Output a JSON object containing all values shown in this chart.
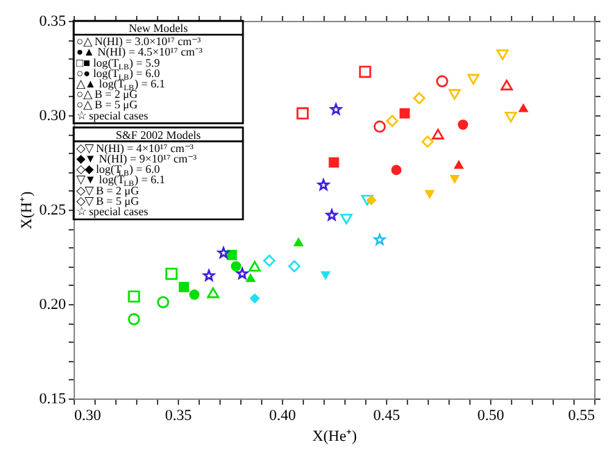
{
  "chart_data": {
    "type": "scatter",
    "xlabel": "X(He⁺)",
    "ylabel": "X(H⁺)",
    "xlim": [
      0.3,
      0.55
    ],
    "ylim": [
      0.15,
      0.35
    ],
    "xticks": [
      {
        "value": 0.3,
        "label": "0.30"
      },
      {
        "value": 0.31,
        "label": null
      },
      {
        "value": 0.32,
        "label": null
      },
      {
        "value": 0.33,
        "label": null
      },
      {
        "value": 0.34,
        "label": null
      },
      {
        "value": 0.35,
        "label": "0.35"
      },
      {
        "value": 0.36,
        "label": null
      },
      {
        "value": 0.37,
        "label": null
      },
      {
        "value": 0.38,
        "label": null
      },
      {
        "value": 0.39,
        "label": null
      },
      {
        "value": 0.4,
        "label": "0.40"
      },
      {
        "value": 0.41,
        "label": null
      },
      {
        "value": 0.42,
        "label": null
      },
      {
        "value": 0.43,
        "label": null
      },
      {
        "value": 0.44,
        "label": null
      },
      {
        "value": 0.45,
        "label": "0.45"
      },
      {
        "value": 0.46,
        "label": null
      },
      {
        "value": 0.47,
        "label": null
      },
      {
        "value": 0.48,
        "label": null
      },
      {
        "value": 0.49,
        "label": null
      },
      {
        "value": 0.5,
        "label": "0.50"
      },
      {
        "value": 0.51,
        "label": null
      },
      {
        "value": 0.52,
        "label": null
      },
      {
        "value": 0.53,
        "label": null
      },
      {
        "value": 0.54,
        "label": null
      },
      {
        "value": 0.55,
        "label": "0.55"
      }
    ],
    "yticks": [
      {
        "value": 0.15,
        "label": "0.15"
      },
      {
        "value": 0.16,
        "label": null
      },
      {
        "value": 0.17,
        "label": null
      },
      {
        "value": 0.18,
        "label": null
      },
      {
        "value": 0.19,
        "label": null
      },
      {
        "value": 0.2,
        "label": "0.20"
      },
      {
        "value": 0.21,
        "label": null
      },
      {
        "value": 0.22,
        "label": null
      },
      {
        "value": 0.23,
        "label": null
      },
      {
        "value": 0.24,
        "label": null
      },
      {
        "value": 0.25,
        "label": "0.25"
      },
      {
        "value": 0.26,
        "label": null
      },
      {
        "value": 0.27,
        "label": null
      },
      {
        "value": 0.28,
        "label": null
      },
      {
        "value": 0.29,
        "label": null
      },
      {
        "value": 0.3,
        "label": "0.30"
      },
      {
        "value": 0.31,
        "label": null
      },
      {
        "value": 0.32,
        "label": null
      },
      {
        "value": 0.33,
        "label": null
      },
      {
        "value": 0.34,
        "label": null
      },
      {
        "value": 0.35,
        "label": "0.35"
      }
    ],
    "annotations": [
      "New Models",
      "○△ N(HI) = 3.0×10¹⁷ cm⁻³",
      "●▲ N(HI) = 4.5×10¹⁷ cm⁻³",
      "□■ log(T$_{LB}$) = 5.9",
      "○● log(T$_{LB}$) = 6.0",
      "△▲ log(T$_{LB}$) = 6.1",
      "○△ B = 2 μG",
      "○△ B = 5 μG",
      "☆ special cases",
      "S&F 2002 Models",
      "◇▽ N(HI) = 4×10¹⁷ cm⁻³",
      "◆▼ N(HI) = 9×10¹⁷ cm⁻³",
      "◇◆ log(T$_{LB}$) = 6.0",
      "▽▼ log(T$_{LB}$) = 6.1",
      "◇▽ B = 2 μG",
      "◇▽ B = 5 μG",
      "☆ special cases"
    ],
    "series": [
      {
        "color": "#00e000",
        "marker": "circle-open",
        "x": [
          0.329,
          0.343
        ],
        "values": [
          0.192,
          0.201
        ]
      },
      {
        "color": "#00e000",
        "marker": "circle",
        "x": [
          0.358,
          0.378
        ],
        "values": [
          0.205,
          0.22
        ]
      },
      {
        "color": "#00e000",
        "marker": "square-open",
        "x": [
          0.329,
          0.347
        ],
        "values": [
          0.204,
          0.216
        ]
      },
      {
        "color": "#00e000",
        "marker": "square",
        "x": [
          0.353,
          0.376
        ],
        "values": [
          0.209,
          0.226
        ]
      },
      {
        "color": "#00e000",
        "marker": "triangle-open",
        "x": [
          0.367,
          0.387
        ],
        "values": [
          0.206,
          0.22
        ]
      },
      {
        "color": "#00e000",
        "marker": "triangle",
        "x": [
          0.385,
          0.408
        ],
        "values": [
          0.214,
          0.233
        ]
      },
      {
        "color": "#ff2020",
        "marker": "circle-open",
        "x": [
          0.447,
          0.477
        ],
        "values": [
          0.294,
          0.318
        ]
      },
      {
        "color": "#ff2020",
        "marker": "circle",
        "x": [
          0.455,
          0.487
        ],
        "values": [
          0.271,
          0.295
        ]
      },
      {
        "color": "#ff2020",
        "marker": "square-open",
        "x": [
          0.41,
          0.44
        ],
        "values": [
          0.301,
          0.323
        ]
      },
      {
        "color": "#ff2020",
        "marker": "square",
        "x": [
          0.425,
          0.459
        ],
        "values": [
          0.275,
          0.301
        ]
      },
      {
        "color": "#ff2020",
        "marker": "triangle-open",
        "x": [
          0.475,
          0.508
        ],
        "values": [
          0.29,
          0.316
        ]
      },
      {
        "color": "#ff2020",
        "marker": "triangle",
        "x": [
          0.485,
          0.516
        ],
        "values": [
          0.274,
          0.304
        ]
      },
      {
        "color": "#3a20e0",
        "marker": "star-open",
        "x": [
          0.365,
          0.372,
          0.381,
          0.42,
          0.424,
          0.426
        ],
        "values": [
          0.215,
          0.227,
          0.216,
          0.263,
          0.247,
          0.303
        ]
      },
      {
        "color": "#20e0f0",
        "marker": "diamond-open",
        "x": [
          0.394,
          0.406
        ],
        "values": [
          0.223,
          0.22
        ]
      },
      {
        "color": "#20e0f0",
        "marker": "diamond",
        "x": [
          0.387
        ],
        "values": [
          0.203
        ]
      },
      {
        "color": "#20e0f0",
        "marker": "triangle-down-open",
        "x": [
          0.431,
          0.441
        ],
        "values": [
          0.245,
          0.255
        ]
      },
      {
        "color": "#20e0f0",
        "marker": "triangle-down",
        "x": [
          0.421
        ],
        "values": [
          0.215
        ]
      },
      {
        "color": "#ffc000",
        "marker": "diamond-open",
        "x": [
          0.453,
          0.466,
          0.47
        ],
        "values": [
          0.297,
          0.309,
          0.286
        ]
      },
      {
        "color": "#ffc000",
        "marker": "diamond",
        "x": [
          0.443
        ],
        "values": [
          0.255
        ]
      },
      {
        "color": "#ffc000",
        "marker": "triangle-down-open",
        "x": [
          0.483,
          0.492,
          0.506,
          0.51
        ],
        "values": [
          0.311,
          0.319,
          0.332,
          0.299
        ]
      },
      {
        "color": "#ffc000",
        "marker": "triangle-down",
        "x": [
          0.471,
          0.483
        ],
        "values": [
          0.258,
          0.266
        ]
      },
      {
        "color": "#20c0f0",
        "marker": "star-open",
        "x": [
          0.447
        ],
        "values": [
          0.234
        ]
      }
    ]
  }
}
